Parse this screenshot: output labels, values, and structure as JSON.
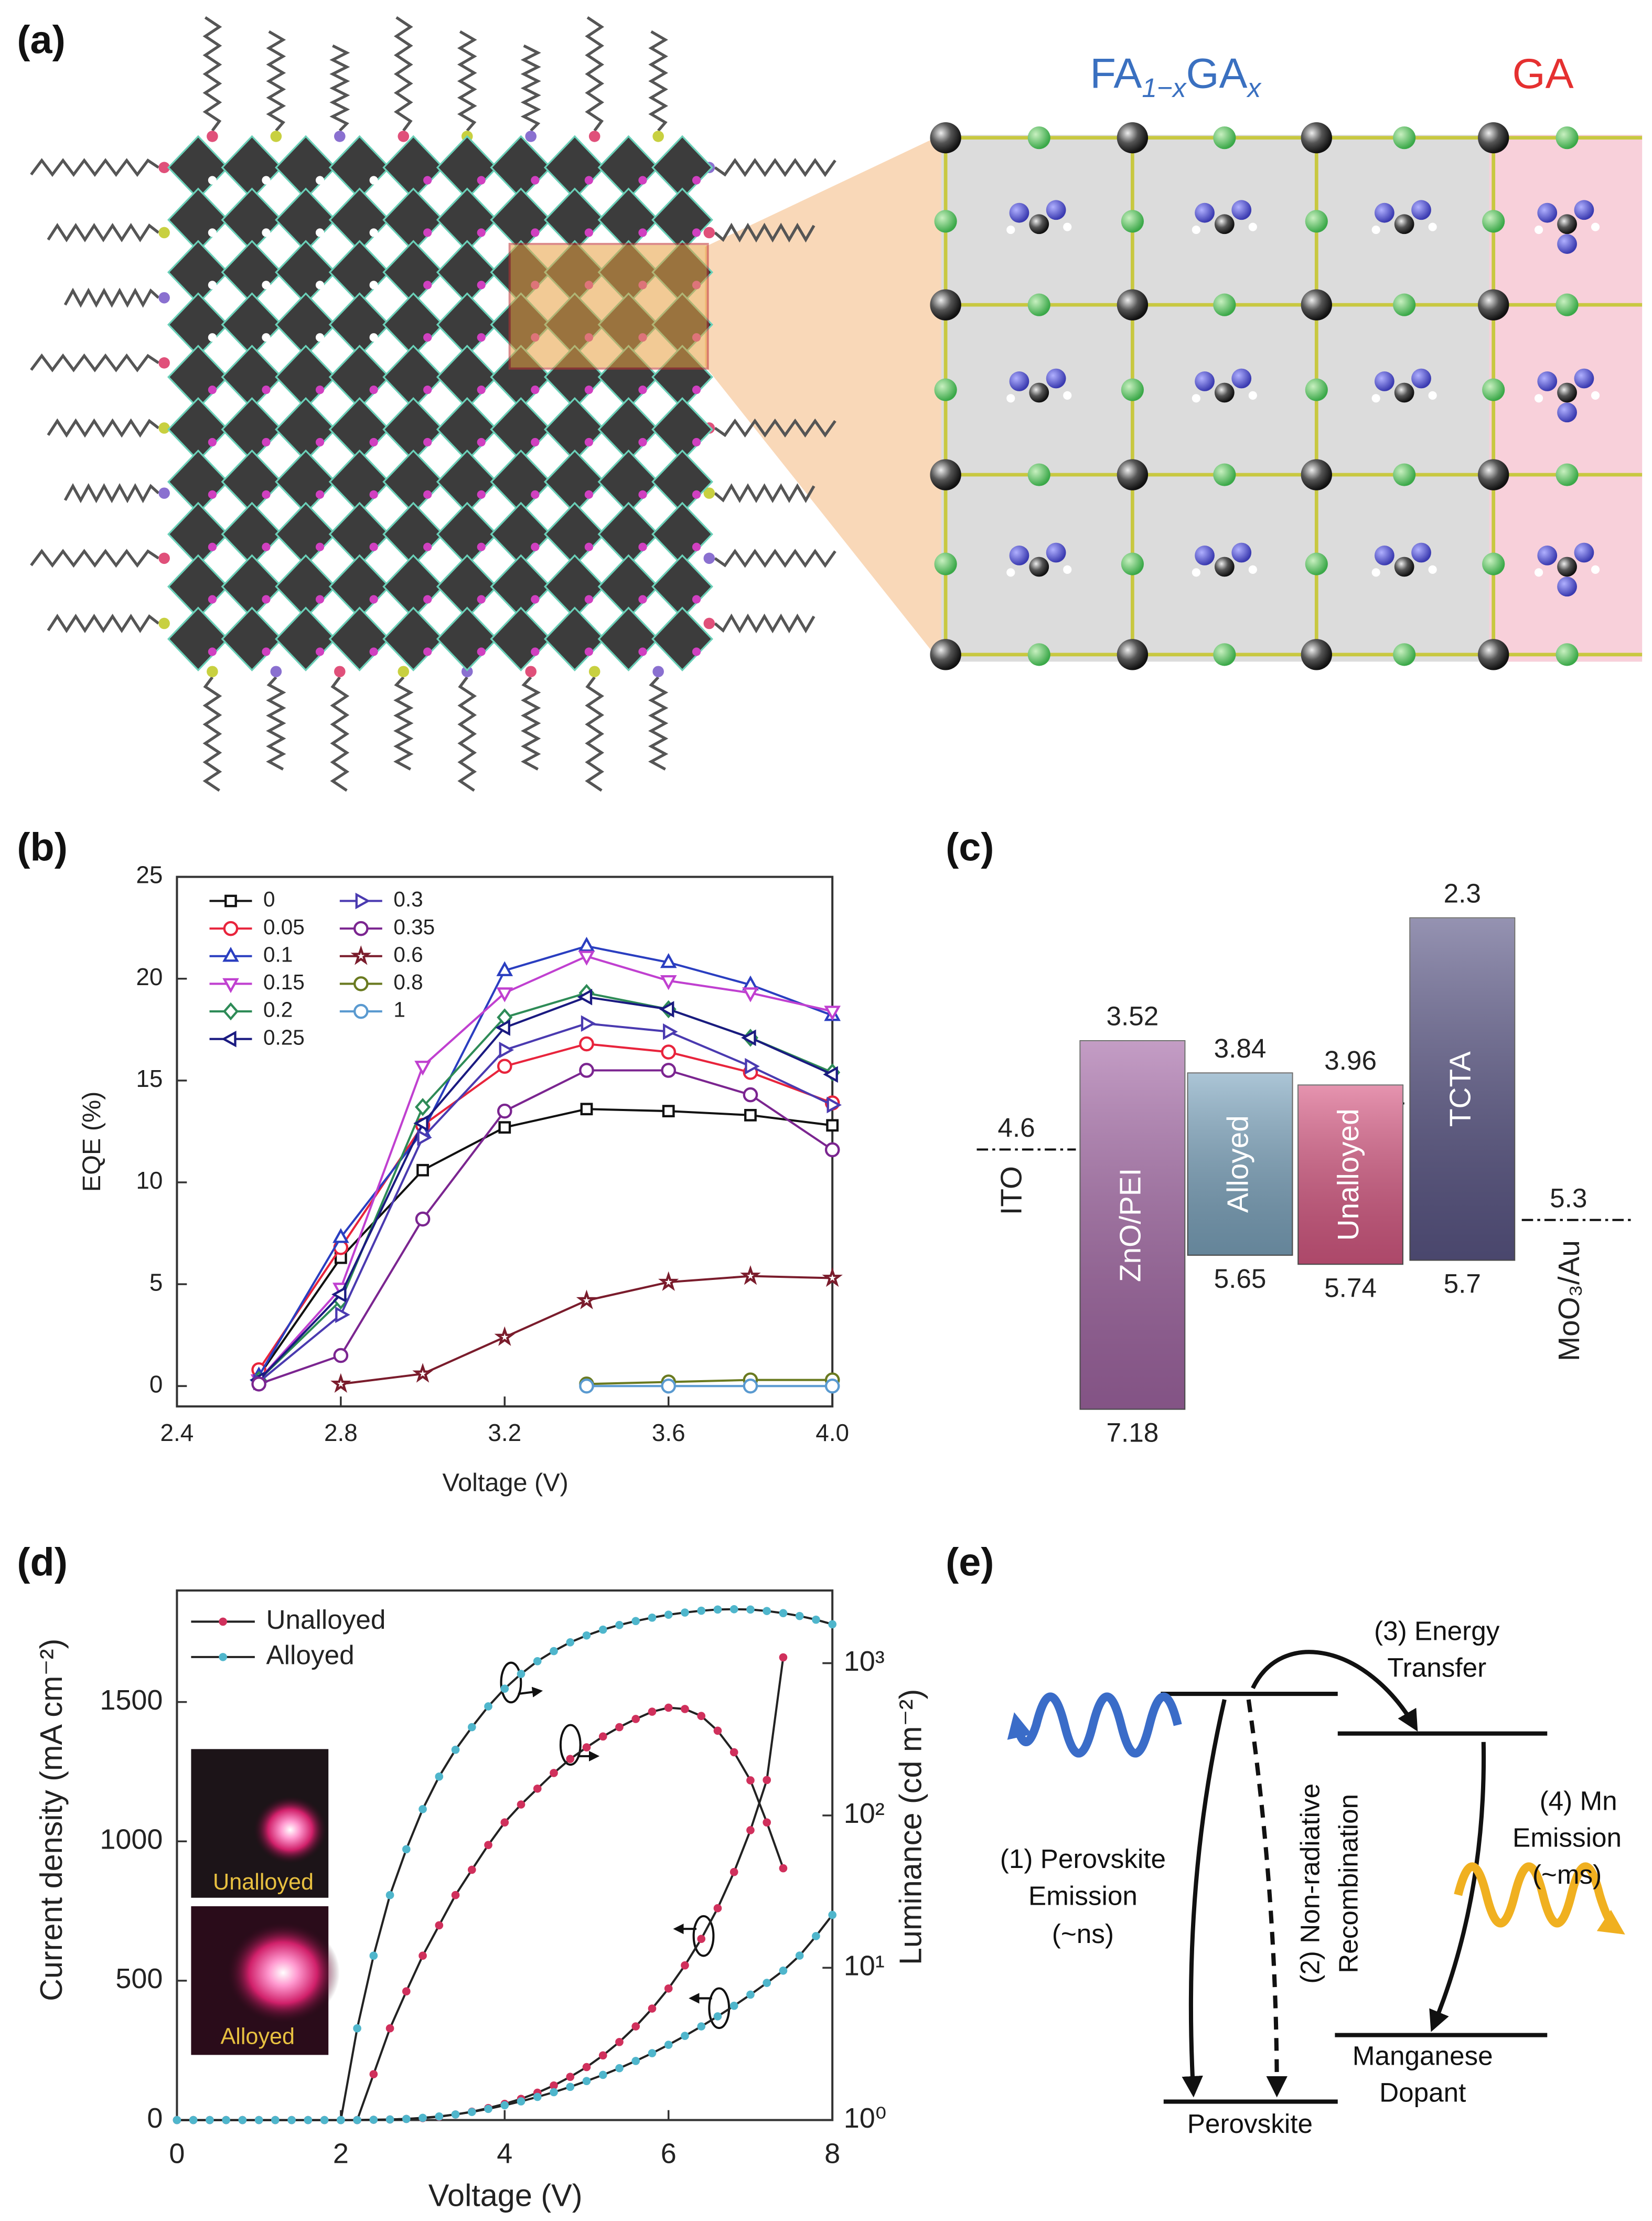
{
  "panel_labels": [
    "(a)",
    "(b)",
    "(c)",
    "(d)",
    "(e)"
  ],
  "panel_a": {
    "formula": [
      "FA",
      "1−x",
      "GA",
      "x"
    ],
    "end_member": "GA"
  },
  "chart_data": [
    {
      "type": "line",
      "xlabel": "Voltage (V)",
      "ylabel": "EQE (%)",
      "x": [
        2.6,
        2.8,
        3.0,
        3.2,
        3.4,
        3.6,
        3.8,
        4.0
      ],
      "xlim": [
        2.4,
        4
      ],
      "xticks": [
        2.4,
        2.8,
        3.2,
        3.6,
        {
          "value": 4,
          "label": "4.0"
        }
      ],
      "ylim": [
        -1,
        25
      ],
      "yticks": [
        0,
        5,
        10,
        15,
        20,
        25
      ],
      "legend": "upper left",
      "legend_columns": 2,
      "series": [
        {
          "name": "0",
          "color": "#111111",
          "marker": "square",
          "values": [
            0.5,
            6.3,
            10.6,
            12.7,
            13.6,
            13.5,
            13.3,
            12.8
          ]
        },
        {
          "name": "0.05",
          "color": "#e8243c",
          "marker": "circle",
          "values": [
            0.8,
            6.8,
            12.8,
            15.7,
            16.8,
            16.4,
            15.4,
            13.9
          ]
        },
        {
          "name": "0.1",
          "color": "#2a3ec0",
          "marker": "triangle-up",
          "values": [
            0.5,
            7.3,
            12.5,
            20.4,
            21.6,
            20.8,
            19.7,
            18.2
          ]
        },
        {
          "name": "0.15",
          "color": "#c040d0",
          "marker": "triangle-down",
          "values": [
            0.3,
            4.8,
            15.7,
            19.3,
            21.1,
            19.9,
            19.3,
            18.4
          ]
        },
        {
          "name": "0.2",
          "color": "#2e8b57",
          "marker": "diamond",
          "values": [
            0.3,
            4.2,
            13.7,
            18.1,
            19.3,
            18.5,
            17.1,
            15.4
          ]
        },
        {
          "name": "0.25",
          "color": "#1a1a80",
          "marker": "triangle-left",
          "values": [
            0.3,
            4.5,
            12.9,
            17.6,
            19.1,
            18.5,
            17.1,
            15.3
          ]
        },
        {
          "name": "0.3",
          "color": "#4a3ab0",
          "marker": "triangle-right",
          "values": [
            0.2,
            3.5,
            12.2,
            16.5,
            17.8,
            17.4,
            15.7,
            13.8
          ]
        },
        {
          "name": "0.35",
          "color": "#7b2590",
          "marker": "circle",
          "values": [
            0.1,
            1.5,
            8.2,
            13.5,
            15.5,
            15.5,
            14.3,
            11.6
          ]
        },
        {
          "name": "0.6",
          "color": "#7a1c2c",
          "marker": "star",
          "values": [
            null,
            0.1,
            0.6,
            2.4,
            4.2,
            5.1,
            5.4,
            5.3
          ]
        },
        {
          "name": "0.8",
          "color": "#6a7a20",
          "marker": "circle",
          "values": [
            null,
            null,
            null,
            null,
            0.1,
            0.2,
            0.3,
            0.3
          ]
        },
        {
          "name": "1",
          "color": "#5a9ad0",
          "marker": "circle",
          "values": [
            null,
            null,
            null,
            null,
            0,
            0,
            0,
            0
          ]
        }
      ]
    },
    {
      "type": "energy",
      "categories": [
        "ZnO/PEI",
        "Alloyed",
        "Unalloyed",
        "TCTA"
      ],
      "lumo": [
        3.52,
        3.84,
        3.96,
        2.3
      ],
      "homo": [
        7.18,
        5.65,
        5.74,
        5.7
      ],
      "colors": [
        "#a468a6",
        "#7ea6c0",
        "#d85a84",
        "#5c5888"
      ],
      "electrodes": [
        {
          "name": "ITO",
          "value": 4.6
        },
        {
          "name": "MoO₃/Au",
          "value": 5.3
        }
      ]
    },
    {
      "type": "line",
      "xlabel": "Voltage (V)",
      "ylabel": "Current density (mA cm⁻²)",
      "y2label": "Luminance (cd m⁻²)",
      "x": [
        0,
        0.2,
        0.4,
        0.6,
        0.8,
        1.0,
        1.2,
        1.4,
        1.6,
        1.8,
        2.0,
        2.2,
        2.4,
        2.6,
        2.8,
        3.0,
        3.2,
        3.4,
        3.6,
        3.8,
        4.0,
        4.2,
        4.4,
        4.6,
        4.8,
        5.0,
        5.2,
        5.4,
        5.6,
        5.8,
        6.0,
        6.2,
        6.4,
        6.6,
        6.8,
        7.0,
        7.2,
        7.4,
        7.6,
        7.8,
        8.0
      ],
      "xlim": [
        0,
        8
      ],
      "xticks": [
        0,
        2,
        4,
        6,
        8
      ],
      "ylim": [
        0,
        1900
      ],
      "yticks": [
        0,
        500,
        1000,
        1500
      ],
      "y2lim": [
        1,
        3000
      ],
      "y2scale": "log",
      "y2ticks": [
        {
          "value": 1,
          "label": "10⁰"
        },
        {
          "value": 10,
          "label": "10¹"
        },
        {
          "value": 100,
          "label": "10²"
        },
        {
          "value": 1000,
          "label": "10³"
        }
      ],
      "legend": "upper left",
      "legend_columns": 1,
      "line_color": "#222222",
      "annotations": [
        "Unalloyed",
        "Alloyed"
      ],
      "series": [
        {
          "name": "Unalloyed",
          "color": "#d0305c",
          "marker": "dot",
          "values": [
            0,
            0,
            0,
            0,
            0,
            0,
            0,
            0,
            0,
            0,
            0,
            0,
            1,
            2,
            4,
            7,
            12,
            20,
            30,
            43,
            58,
            76,
            98,
            124,
            155,
            190,
            232,
            280,
            336,
            400,
            472,
            555,
            650,
            760,
            890,
            1040,
            1220,
            1660,
            null,
            null,
            null
          ],
          "y2_values": [
            null,
            null,
            null,
            null,
            null,
            null,
            null,
            null,
            null,
            null,
            null,
            1,
            2,
            4,
            7,
            12,
            19,
            30,
            44,
            64,
            90,
            118,
            150,
            190,
            235,
            280,
            330,
            380,
            430,
            480,
            510,
            500,
            450,
            360,
            260,
            170,
            90,
            45,
            null,
            null,
            null
          ]
        },
        {
          "name": "Alloyed",
          "color": "#4fb6cc",
          "marker": "dot",
          "values": [
            0,
            0,
            0,
            0,
            0,
            0,
            0,
            0,
            0,
            0,
            0,
            0,
            1,
            2,
            4,
            8,
            13,
            20,
            29,
            40,
            53,
            67,
            83,
            100,
            119,
            140,
            162,
            186,
            212,
            240,
            270,
            302,
            336,
            372,
            410,
            450,
            492,
            536,
            590,
            660,
            736
          ],
          "y2_values": [
            null,
            null,
            null,
            null,
            null,
            null,
            null,
            null,
            null,
            null,
            1,
            4,
            12,
            30,
            60,
            110,
            180,
            270,
            380,
            520,
            680,
            850,
            1030,
            1200,
            1370,
            1520,
            1660,
            1780,
            1890,
            1990,
            2080,
            2150,
            2210,
            2250,
            2260,
            2250,
            2200,
            2130,
            2040,
            1930,
            1800
          ]
        }
      ]
    }
  ],
  "panel_e": {
    "energy_transfer": [
      "(3) Energy",
      "Transfer"
    ],
    "mn_emission": [
      "(4) Mn",
      "Emission",
      "(~ms)"
    ],
    "perovskite_emission": [
      "(1) Perovskite",
      "Emission",
      "(~ns)"
    ],
    "non_radiative": [
      "(2) Non-radiative",
      "Recombination"
    ],
    "dopant": [
      "Manganese",
      "Dopant"
    ],
    "host": "Perovskite"
  }
}
